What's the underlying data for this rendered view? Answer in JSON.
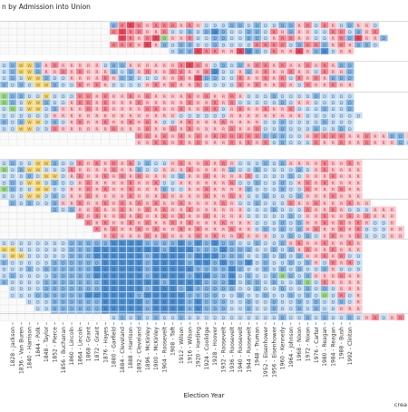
{
  "page": {
    "title": "n by Admission into Union",
    "xlabel": "Election Year",
    "credit": "crea"
  },
  "colors": {
    "dem_dark": "#4f8fcf",
    "dem_mid": "#8ab8e3",
    "dem_light": "#c9def2",
    "rep_dark": "#e0495c",
    "rep_mid": "#f08a96",
    "rep_light": "#fac7cc",
    "whig": "#f4d77a",
    "other": "#9fd68f",
    "none": "#ffffff",
    "grid": "#c8c8c8"
  },
  "chart_data": {
    "type": "heatmap",
    "title": "n by Admission into Union",
    "xlabel": "Election Year",
    "ylabel": "",
    "x_tick_labels": [
      "1828 - Jackson",
      "1836 - Van Buren",
      "1840 - Harrison",
      "1844 - Polk",
      "1848 - Taylor",
      "1852 - Pierce",
      "1856 - Buchanan",
      "1860 - Lincoln",
      "1864 - Lincoln",
      "1868 - Grant",
      "1872 - Grant",
      "1876 - Hayes",
      "1880 - Garfield",
      "1884 - Cleveland",
      "1888 - Harrison",
      "1892 - Cleveland",
      "1896 - McKinley",
      "1900 - McKinley",
      "1904 - Roosevelt",
      "1908 - Taft",
      "1912 - Wilson",
      "1916 - Wilson",
      "1920 - Harding",
      "1924 - Coolidge",
      "1928 - Hoover",
      "1932 - Roosevelt",
      "1936 - Roosevelt",
      "1940 - Roosevelt",
      "1944 - Roosevelt",
      "1948 - Truman",
      "1952 - Eisenhower",
      "1956 - Eisenhower",
      "1960 - Kennedy",
      "1964 - Johnson",
      "1968 - Nixon",
      "1972 - Nixon",
      "1976 - Carter",
      "1980 - Reagan",
      "1984 - Reagan",
      "1988 - Bush",
      "1992 - Clinton"
    ],
    "legend": {
      "D": "D",
      "R": "R",
      "W": "W",
      "O": "other"
    },
    "groups": [
      {
        "ystart": 24,
        "rows": [
          {
            "start": 13,
            "winners": "DRRRRRRRRRRDDDDDDDDDDDRRDRRDDRRD",
            "margins": "22321222121111221211221212112111"
          },
          {
            "start": 13,
            "winners": "RRRRRRRDDDDDDDDDDDDRRDRRDDRRDDRR",
            "margins": "23221121121232112212121111221212"
          },
          {
            "start": 14,
            "winners": "RRRRRORRRDDDDDDDDDRRRRRDDRRDRRRD",
            "margins": "32123111211221122112211111223112"
          },
          {
            "start": 13,
            "winners": "RRRRRRDDDDDDDDDDDRRRRDDRRDRRRDDD",
            "margins": "22213121221121111222212222121221"
          },
          {
            "start": 20,
            "winners": "DDDRRRRRRDDDRRRRRDDDRR",
            "margins": "1223221133212113123111"
          }
        ]
      },
      {
        "ystart": 68,
        "rows": [
          {
            "start": 0,
            "winners": "DDWWDRRRRRRRDDDRRRRRRRRRRDDDDRRRRRRRRRRRDD",
            "margins": "121121211111122111111232112121221211212122"
          },
          {
            "start": 0,
            "winners": "DDWWDRRRRRRRRDDDRRRRRRRRRDDDRDRRRRRRRDRRRD",
            "margins": "121121121211121212112211231112121121112112"
          },
          {
            "start": 0,
            "winners": "DDDWWDDDRRRRRRDDDDDRRRRRDDDDRRRRRRDRRRRDDD",
            "margins": "121122111111212211111213221121121212121222"
          },
          {
            "start": 0,
            "winners": "DDDDWWDDDRRRRDDDDRRRRRRRDDDDRRRRRRRDRRRRRR",
            "margins": "212121211212111111212112111121211211211211"
          }
        ]
      },
      {
        "ystart": 102,
        "rows": [
          {
            "start": 0,
            "winners": "ODDDDWDDDRRRRRRRRRRRRRRRRRRRRDDDDDDDDDDDDD",
            "margins": "122111111221211212111121211211112111121111"
          },
          {
            "start": 0,
            "winners": "ODDWWDDDRRRRRRRRRRRRRRRRRRRRDDDDDDDRRDDDDD",
            "margins": "121112111221211121111121121211111211111112"
          },
          {
            "start": 0,
            "winners": "DODWWDDRRRRRRRRRRRRRRRRRRRDRRRRRRRRDDDDDDD",
            "margins": "121111211121211112211211221121121121112112"
          },
          {
            "start": 0,
            "winners": "DDDDDDRRRRRRRRRRRRRRRDDDDDDRRRRRRRRRDDDDDDD",
            "margins": "111111111111111111111111111111111111111111"
          },
          {
            "start": 0,
            "winners": "DDDWWDDDRRRRRRRRRRRDDRRRRRRRRRRDDDDDDDDDDD",
            "margins": "212121211211211212111121112111111211112111"
          },
          {
            "start": 0,
            "winners": "DDWWDDRRRRRRRRRRRRRRRRRRRRRRRRRDDDDDDDDDDD",
            "margins": "111211211111121112112121111211211211121121"
          }
        ]
      },
      {
        "ystart": 146,
        "rows": [
          {
            "start": 16,
            "winners": "RRRRRRRRRRRRRRRDDDDDRRRRRRRRRRDDRRRRRRR",
            "margins": "221212121222222222111222211211221121212"
          },
          {
            "start": 16,
            "winners": "RRRRRRRRRRRRRRRRDDDDDRRRRRRRRRRDDDRRRRR",
            "margins": "112212121112121212111211211211121121211"
          }
        ]
      },
      {
        "ystart": 176,
        "rows": [
          {
            "start": 0,
            "winners": "DDDDWWDDDRRRRRRRDDDDRRRRRRRRDDDDDDRRRRRRRRR",
            "margins": "121111211212121212111211212111121211112112"
          },
          {
            "start": 0,
            "winners": "ODDWWDDDRRRRRRRRDDDRRRRRRRRDDDDDDDDDDRRRRRR",
            "margins": "212121112111121121111121111211211112112111"
          },
          {
            "start": 0,
            "winners": "DDDDDWWDRRRRRRRRRRRRDDRRRRRRRRDDDDDDRRRRRRR",
            "margins": "111212111211212121111211211112111121111211"
          },
          {
            "start": 0,
            "winners": "DDDWWDDDDRRRRRRRRRRDDRRRRRRRDDDDDDDRRRRRRRR",
            "margins": "121111211121111211211111111211211211212111"
          },
          {
            "start": 0,
            "winners": "ODDDWWDDRRRRRRRRRRRDDDRRRRRRRDDDDDDDRRRRRRR",
            "margins": "221121111121211211121111211112111211211121"
          },
          {
            "start": 0,
            "winners": "DDDWWDDDRRRRRRRRRRRRRRRRRRRRRDDDDDDDRRRRRRR",
            "margins": "111111211121111211121111211211121112111211"
          }
        ]
      },
      {
        "ystart": 220,
        "rows": [
          {
            "start": 1,
            "winners": "DDDDDDRRRRRRRRRRRRRRRRRRRRRDDDDDDRRRRRRRRRR",
            "margins": "21211211211212121211211112111211121121112"
          },
          {
            "start": 6,
            "winners": "DDDRRRRRRRRRRRRRRRRRRRRDDDDDDDRRRRRDDDRRR",
            "margins": "2121121121121211211111111121112112111"
          },
          {
            "start": 9,
            "winners": "RRRRRRRRRRRRRRRRRRRRDDDDDDDRRRRRRRRRRR",
            "margins": "21211212112121121111111112111211212"
          },
          {
            "start": 10,
            "winners": "RRRRRRRRRRRRRRRRRRRRDDDDDDRRRRRRRRDDR",
            "margins": "2121121211212111211111121211212121"
          },
          {
            "start": 11,
            "winners": "RRRRRRRRRRRRRRRRRRRDDDDDDRRRRRRRDDDRR",
            "margins": "212112121121211121112121212112121"
          },
          {
            "start": 12,
            "winners": "RRRRRRRRRRRRRRRRRRRRDDDDDDRRRRRDDDRR",
            "margins": "12111212111212112111112121121121"
          }
        ]
      },
      {
        "ystart": 264,
        "rows": [
          {
            "start": 0,
            "winners": "DDDDDDDDDDDDDDDDDDDDDDDDDDDDDDDDDDRRRRRRRRR",
            "margins": "111111112222233332222323232211211212112112"
          },
          {
            "start": 0,
            "winners": "WWDDDDDDDDDDDDDDDDDDDDDDDDDDDDDDDDDRRRRRRRR",
            "margins": "221111112223333333323332223222112121211211"
          },
          {
            "start": 0,
            "winners": "DWWDDDDDDDDDDDDDDDDDDDDDDDDDDDDDDDDDRRRRRDD",
            "margins": "122111112223333332333323332221121212112121"
          },
          {
            "start": 0,
            "winners": "DDDDDDDDDDDDDDDDDDDDDDDDDDDDDDDDDDDDDRDRRRD",
            "margins": "211111222222333332333323323223121121211212"
          },
          {
            "start": 0,
            "winners": "DDDDDDDDDDDDDDDDDDDDDDDDDDDDDDDDDDDDDDDRDDD",
            "margins": "111212222223333332333332222321121212112111"
          },
          {
            "start": 0,
            "winners": "DDDDDDDDDDDDDDDDDDDDDDDDDDDDDDDDDODDDRRRRRR",
            "margins": "121111222223333332333323322312112121211121"
          },
          {
            "start": 0,
            "winners": "DDDDDDDDDDDDDDDDDDDDDDDDDDDDDDDDDDDDODRRRRR",
            "margins": "211112222222333333323333222312212112112111"
          },
          {
            "start": 1,
            "winners": "DDDDDDDDDDDDDDDDDDDDDDDDDDDDDDDDDDDDDDDRRR",
            "margins": "11112222222333332333232222211211211212111"
          },
          {
            "start": 1,
            "winners": "DDDDDDDDDDDDDDDDDDDDDDDDDDDDDDDDDDDDDODRDR",
            "margins": "11122222233333323333322221121121121211121"
          },
          {
            "start": 3,
            "winners": "DDDDDDDDDDDDDDDDDDDDDDDDDDDDDDDDDDDDDDDR",
            "margins": "111222222333332333323222112112112121121"
          },
          {
            "start": 4,
            "winners": "DDDDDDDDDDDDDDDDDDDDDDDDDDDDDDDDDDDDRRR",
            "margins": "1122222233333233332322211211211212111"
          },
          {
            "start": 6,
            "winners": "DDDDDDDDDDDDDDDDDDDDDDDDDDDDDDDDDDRRR",
            "margins": "22222233333233332322211211211211211"
          }
        ]
      },
      {
        "ystart": 346,
        "rows": [
          {
            "start": 13,
            "winners": "DDDDDDDDDDDDDDDDDDDDDDDDDDDDDDRRDRR",
            "margins": "12121211211111111111211212112112112"
          }
        ]
      }
    ]
  }
}
